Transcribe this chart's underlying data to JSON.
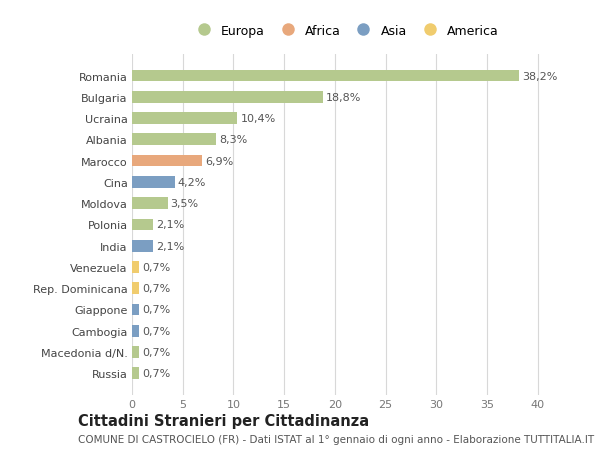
{
  "countries": [
    "Romania",
    "Bulgaria",
    "Ucraina",
    "Albania",
    "Marocco",
    "Cina",
    "Moldova",
    "Polonia",
    "India",
    "Venezuela",
    "Rep. Dominicana",
    "Giappone",
    "Cambogia",
    "Macedonia d/N.",
    "Russia"
  ],
  "values": [
    38.2,
    18.8,
    10.4,
    8.3,
    6.9,
    4.2,
    3.5,
    2.1,
    2.1,
    0.7,
    0.7,
    0.7,
    0.7,
    0.7,
    0.7
  ],
  "labels": [
    "38,2%",
    "18,8%",
    "10,4%",
    "8,3%",
    "6,9%",
    "4,2%",
    "3,5%",
    "2,1%",
    "2,1%",
    "0,7%",
    "0,7%",
    "0,7%",
    "0,7%",
    "0,7%",
    "0,7%"
  ],
  "continent": [
    "Europa",
    "Europa",
    "Europa",
    "Europa",
    "Africa",
    "Asia",
    "Europa",
    "Europa",
    "Asia",
    "America",
    "America",
    "Asia",
    "Asia",
    "Europa",
    "Europa"
  ],
  "colors": {
    "Europa": "#b5c98e",
    "Africa": "#e8a87c",
    "Asia": "#7b9ec2",
    "America": "#f0cc6e"
  },
  "legend_order": [
    "Europa",
    "Africa",
    "Asia",
    "America"
  ],
  "title": "Cittadini Stranieri per Cittadinanza",
  "subtitle": "COMUNE DI CASTROCIELO (FR) - Dati ISTAT al 1° gennaio di ogni anno - Elaborazione TUTTITALIA.IT",
  "xlim": [
    0,
    42
  ],
  "xticks": [
    0,
    5,
    10,
    15,
    20,
    25,
    30,
    35,
    40
  ],
  "bg_color": "#ffffff",
  "grid_color": "#d8d8d8",
  "bar_height": 0.55,
  "label_fontsize": 8,
  "tick_fontsize": 8,
  "ytick_fontsize": 8,
  "title_fontsize": 10.5,
  "subtitle_fontsize": 7.5,
  "legend_fontsize": 9
}
